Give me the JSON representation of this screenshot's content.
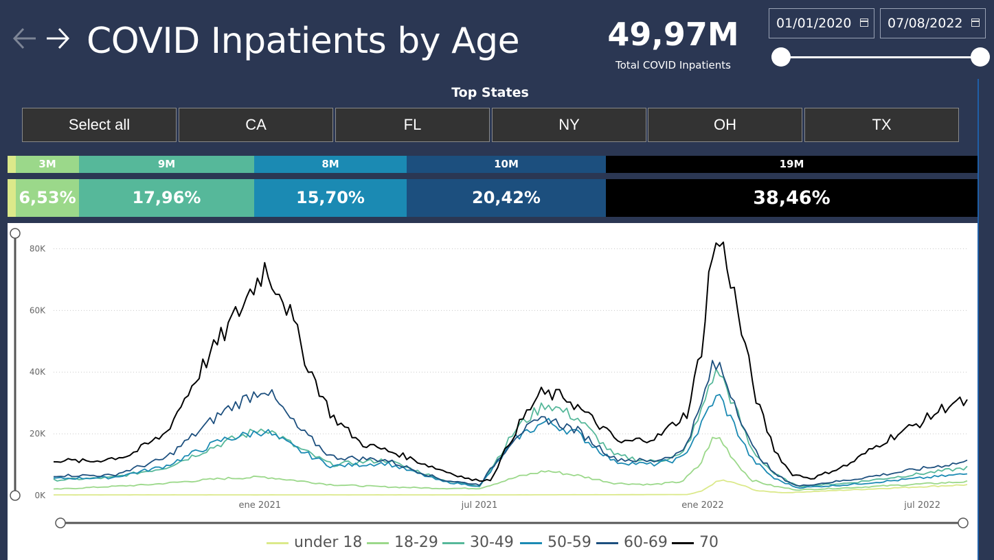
{
  "header": {
    "title": "COVID Inpatients by Age",
    "kpi_value": "49,97M",
    "kpi_label": "Total COVID Inpatients",
    "date_start": "01/01/2020",
    "date_end": "07/08/2022",
    "date_range_fraction": [
      0,
      1
    ]
  },
  "filter": {
    "heading": "Top States",
    "buttons": [
      "Select all",
      "CA",
      "FL",
      "NY",
      "OH",
      "TX"
    ]
  },
  "age_breakdown": [
    {
      "group": "under 18",
      "count": "",
      "share": "",
      "color": "#dbe98a"
    },
    {
      "group": "18-29",
      "count": "3M",
      "share": "6,53%",
      "color": "#9bd88a"
    },
    {
      "group": "30-49",
      "count": "9M",
      "share": "17,96%",
      "color": "#56b89a"
    },
    {
      "group": "50-59",
      "count": "8M",
      "share": "15,70%",
      "color": "#1b8ab3"
    },
    {
      "group": "60-69",
      "count": "10M",
      "share": "20,42%",
      "color": "#1c4f7e"
    },
    {
      "group": "70",
      "count": "19M",
      "share": "38,46%",
      "color": "#000000"
    }
  ],
  "chart_data": {
    "type": "line",
    "title": "",
    "xlabel": "",
    "ylabel": "",
    "x_start": "2020-07-15",
    "x_end": "2022-08-07",
    "x_ticks": [
      {
        "date": "2021-01-01",
        "label": "ene 2021"
      },
      {
        "date": "2021-07-01",
        "label": "jul 2021"
      },
      {
        "date": "2022-01-01",
        "label": "ene 2022"
      },
      {
        "date": "2022-07-01",
        "label": "jul 2022"
      }
    ],
    "y_ticks": [
      {
        "value": 0,
        "label": "0K"
      },
      {
        "value": 20000,
        "label": "20K"
      },
      {
        "value": 40000,
        "label": "40K"
      },
      {
        "value": 60000,
        "label": "60K"
      },
      {
        "value": 80000,
        "label": "80K"
      }
    ],
    "ylim": [
      0,
      85000
    ],
    "grid": "horizontal dotted",
    "legend_position": "bottom",
    "series": [
      {
        "name": "under 18",
        "color": "#dbe98a",
        "points": [
          [
            "2020-07-15",
            200
          ],
          [
            "2021-01-10",
            200
          ],
          [
            "2021-07-01",
            200
          ],
          [
            "2021-12-20",
            300
          ],
          [
            "2022-01-01",
            1500
          ],
          [
            "2022-01-10",
            4000
          ],
          [
            "2022-01-17",
            5000
          ],
          [
            "2022-02-01",
            3500
          ],
          [
            "2022-02-15",
            1500
          ],
          [
            "2022-03-10",
            900
          ],
          [
            "2022-05-01",
            1800
          ],
          [
            "2022-08-07",
            3500
          ]
        ]
      },
      {
        "name": "18-29",
        "color": "#9bd88a",
        "points": [
          [
            "2020-07-15",
            2000
          ],
          [
            "2020-10-01",
            3500
          ],
          [
            "2020-12-01",
            5500
          ],
          [
            "2021-01-05",
            6000
          ],
          [
            "2021-02-01",
            4800
          ],
          [
            "2021-03-01",
            3500
          ],
          [
            "2021-04-15",
            2800
          ],
          [
            "2021-06-01",
            2300
          ],
          [
            "2021-07-01",
            2300
          ],
          [
            "2021-08-01",
            6000
          ],
          [
            "2021-08-25",
            8000
          ],
          [
            "2021-09-20",
            6500
          ],
          [
            "2021-10-20",
            4000
          ],
          [
            "2021-11-20",
            3500
          ],
          [
            "2021-12-15",
            4500
          ],
          [
            "2021-12-30",
            10000
          ],
          [
            "2022-01-08",
            18000
          ],
          [
            "2022-01-15",
            18500
          ],
          [
            "2022-01-28",
            11000
          ],
          [
            "2022-02-10",
            5000
          ],
          [
            "2022-03-01",
            3000
          ],
          [
            "2022-03-20",
            1800
          ],
          [
            "2022-05-01",
            2500
          ],
          [
            "2022-08-07",
            4500
          ]
        ]
      },
      {
        "name": "30-49",
        "color": "#56b89a",
        "points": [
          [
            "2020-07-15",
            5000
          ],
          [
            "2020-09-01",
            5800
          ],
          [
            "2020-10-15",
            9000
          ],
          [
            "2020-12-01",
            17000
          ],
          [
            "2021-01-05",
            22000
          ],
          [
            "2021-02-01",
            15500
          ],
          [
            "2021-03-01",
            10000
          ],
          [
            "2021-04-15",
            11500
          ],
          [
            "2021-06-01",
            5000
          ],
          [
            "2021-07-01",
            3000
          ],
          [
            "2021-08-01",
            22000
          ],
          [
            "2021-08-25",
            30000
          ],
          [
            "2021-09-20",
            25000
          ],
          [
            "2021-10-20",
            13000
          ],
          [
            "2021-11-20",
            11000
          ],
          [
            "2021-12-15",
            13000
          ],
          [
            "2021-12-30",
            26000
          ],
          [
            "2022-01-08",
            38000
          ],
          [
            "2022-01-15",
            40000
          ],
          [
            "2022-01-28",
            28000
          ],
          [
            "2022-02-10",
            15000
          ],
          [
            "2022-03-01",
            7000
          ],
          [
            "2022-03-20",
            3000
          ],
          [
            "2022-05-01",
            4000
          ],
          [
            "2022-08-07",
            9000
          ]
        ]
      },
      {
        "name": "50-59",
        "color": "#1b8ab3",
        "points": [
          [
            "2020-07-15",
            5500
          ],
          [
            "2020-09-01",
            5800
          ],
          [
            "2020-10-15",
            9500
          ],
          [
            "2020-12-01",
            18000
          ],
          [
            "2021-01-05",
            21000
          ],
          [
            "2021-02-01",
            15000
          ],
          [
            "2021-03-01",
            9500
          ],
          [
            "2021-04-15",
            10500
          ],
          [
            "2021-06-01",
            4500
          ],
          [
            "2021-07-01",
            3000
          ],
          [
            "2021-08-01",
            19000
          ],
          [
            "2021-08-25",
            24000
          ],
          [
            "2021-09-20",
            20000
          ],
          [
            "2021-10-20",
            11000
          ],
          [
            "2021-11-20",
            10000
          ],
          [
            "2021-12-15",
            12000
          ],
          [
            "2021-12-30",
            22000
          ],
          [
            "2022-01-08",
            30000
          ],
          [
            "2022-01-15",
            32000
          ],
          [
            "2022-01-28",
            22000
          ],
          [
            "2022-02-10",
            12000
          ],
          [
            "2022-03-01",
            5500
          ],
          [
            "2022-03-20",
            2500
          ],
          [
            "2022-05-01",
            3500
          ],
          [
            "2022-08-07",
            7000
          ]
        ]
      },
      {
        "name": "60-69",
        "color": "#1c4f7e",
        "points": [
          [
            "2020-07-15",
            6500
          ],
          [
            "2020-09-01",
            6500
          ],
          [
            "2020-10-15",
            12000
          ],
          [
            "2020-12-01",
            27000
          ],
          [
            "2021-01-05",
            35000
          ],
          [
            "2021-02-01",
            22000
          ],
          [
            "2021-03-01",
            12500
          ],
          [
            "2021-04-15",
            11500
          ],
          [
            "2021-06-01",
            5000
          ],
          [
            "2021-07-01",
            3500
          ],
          [
            "2021-08-01",
            20000
          ],
          [
            "2021-08-25",
            25000
          ],
          [
            "2021-09-20",
            21000
          ],
          [
            "2021-10-20",
            12000
          ],
          [
            "2021-11-20",
            11000
          ],
          [
            "2021-12-15",
            14000
          ],
          [
            "2021-12-30",
            28000
          ],
          [
            "2022-01-08",
            41000
          ],
          [
            "2022-01-15",
            42000
          ],
          [
            "2022-01-28",
            30000
          ],
          [
            "2022-02-10",
            16000
          ],
          [
            "2022-03-01",
            7000
          ],
          [
            "2022-03-20",
            3000
          ],
          [
            "2022-05-01",
            5000
          ],
          [
            "2022-08-07",
            11000
          ]
        ]
      },
      {
        "name": "70",
        "color": "#000000",
        "points": [
          [
            "2020-07-15",
            11500
          ],
          [
            "2020-08-15",
            11000
          ],
          [
            "2020-09-15",
            13000
          ],
          [
            "2020-10-15",
            20000
          ],
          [
            "2020-11-15",
            42000
          ],
          [
            "2020-12-15",
            60000
          ],
          [
            "2021-01-05",
            74000
          ],
          [
            "2021-01-20",
            65000
          ],
          [
            "2021-02-10",
            42000
          ],
          [
            "2021-03-01",
            26000
          ],
          [
            "2021-03-25",
            17000
          ],
          [
            "2021-04-25",
            13500
          ],
          [
            "2021-05-25",
            9000
          ],
          [
            "2021-06-25",
            5000
          ],
          [
            "2021-07-10",
            5000
          ],
          [
            "2021-08-01",
            22000
          ],
          [
            "2021-08-20",
            33000
          ],
          [
            "2021-09-10",
            32000
          ],
          [
            "2021-10-01",
            25000
          ],
          [
            "2021-10-25",
            17000
          ],
          [
            "2021-11-25",
            19000
          ],
          [
            "2021-12-20",
            27000
          ],
          [
            "2022-01-01",
            50000
          ],
          [
            "2022-01-08",
            78000
          ],
          [
            "2022-01-15",
            82000
          ],
          [
            "2022-01-22",
            75000
          ],
          [
            "2022-02-01",
            55000
          ],
          [
            "2022-02-15",
            30000
          ],
          [
            "2022-03-01",
            15000
          ],
          [
            "2022-03-15",
            7000
          ],
          [
            "2022-04-01",
            5500
          ],
          [
            "2022-05-01",
            10000
          ],
          [
            "2022-06-01",
            18000
          ],
          [
            "2022-07-01",
            24000
          ],
          [
            "2022-07-25",
            30000
          ],
          [
            "2022-08-07",
            30000
          ]
        ]
      }
    ]
  }
}
